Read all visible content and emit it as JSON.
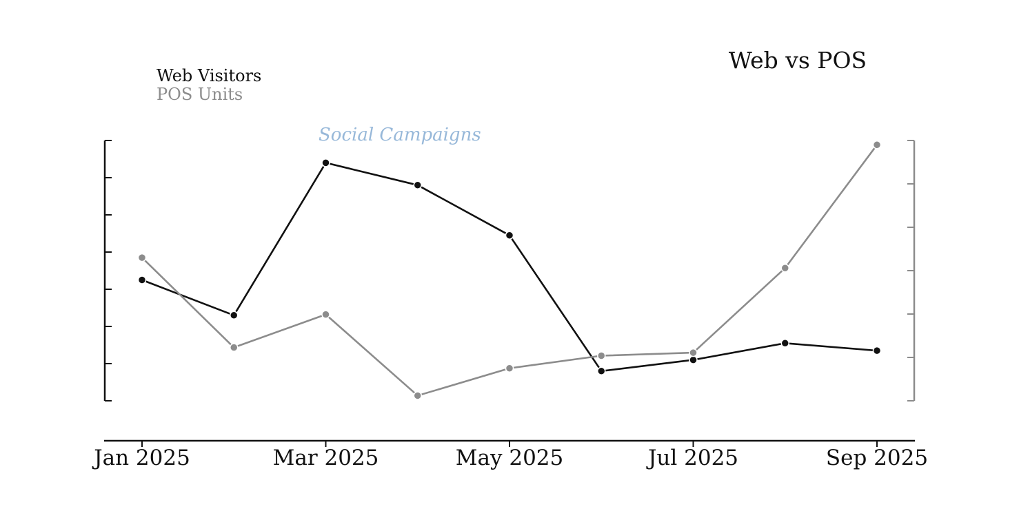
{
  "chart_data": {
    "type": "line",
    "title": "Web vs POS",
    "x": [
      "2025-01",
      "2025-02",
      "2025-03",
      "2025-04",
      "2025-05",
      "2025-06",
      "2025-07",
      "2025-08",
      "2025-09"
    ],
    "x_tick_labels": [
      "Jan 2025",
      "Mar 2025",
      "May 2025",
      "Jul 2025",
      "Sep 2025"
    ],
    "x_tick_positions": [
      "2025-01",
      "2025-03",
      "2025-05",
      "2025-07",
      "2025-09"
    ],
    "annotation": "Social Campaigns",
    "legend": {
      "placement": "top-left",
      "entries": [
        "Web Visitors",
        "POS Units"
      ]
    },
    "grid": false,
    "left_axis": {
      "ylim": [
        0,
        7
      ],
      "ticks": 8,
      "tick_labels": "hidden"
    },
    "right_axis": {
      "ylim": [
        0,
        6
      ],
      "ticks": 7,
      "tick_labels": "hidden"
    },
    "series": [
      {
        "name": "Web Visitors",
        "axis": "left",
        "color": "#111111",
        "values": [
          3.25,
          2.3,
          6.4,
          5.8,
          4.45,
          0.8,
          1.1,
          1.55,
          1.35
        ]
      },
      {
        "name": "POS Units",
        "axis": "right",
        "color": "#8c8c8c",
        "values": [
          3.3,
          1.23,
          1.99,
          0.12,
          0.75,
          1.04,
          1.11,
          3.06,
          5.9
        ]
      }
    ],
    "colors": {
      "left_axis": "#111111",
      "right_axis": "#8c8c8c",
      "annotation": "#97b8d9"
    }
  }
}
